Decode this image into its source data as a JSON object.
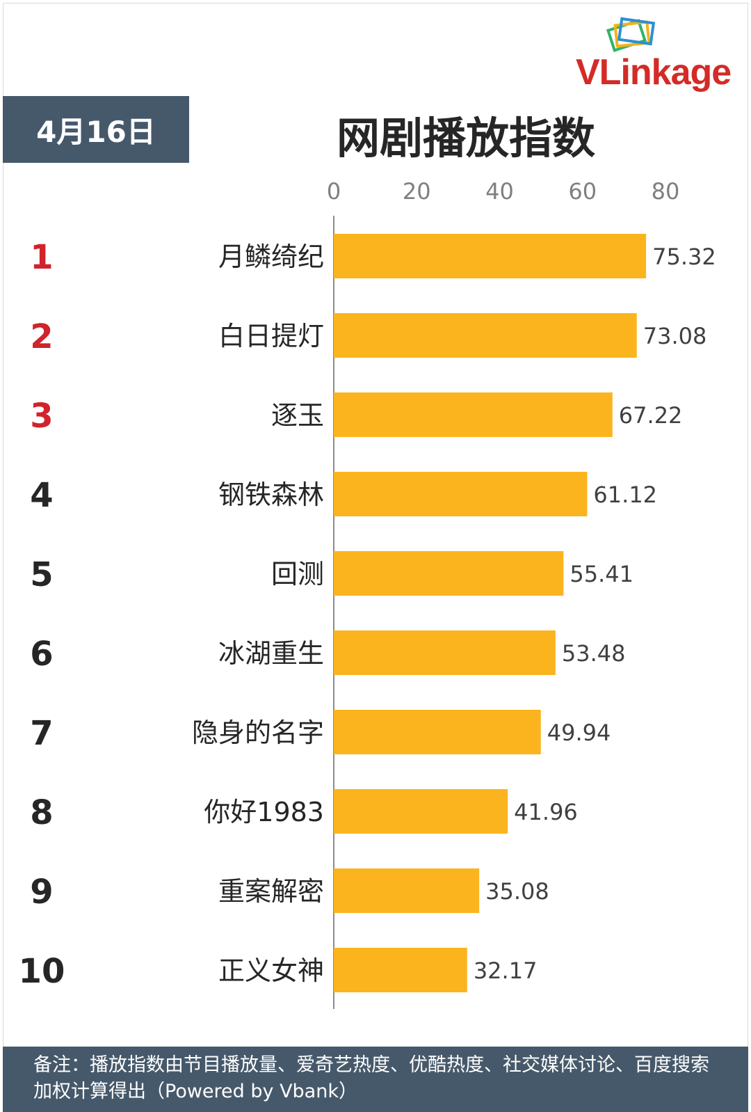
{
  "header": {
    "logo_text": "VLinkage",
    "date": "4月16日",
    "title": "网剧播放指数"
  },
  "chart_data": {
    "type": "bar",
    "orientation": "horizontal",
    "xlim": [
      0,
      80
    ],
    "ticks": [
      0,
      20,
      40,
      60,
      80
    ],
    "ranks": [
      "1",
      "2",
      "3",
      "4",
      "5",
      "6",
      "7",
      "8",
      "9",
      "10"
    ],
    "categories": [
      "月鳞绮纪",
      "白日提灯",
      "逐玉",
      "钢铁森林",
      "回测",
      "冰湖重生",
      "隐身的名字",
      "你好1983",
      "重案解密",
      "正义女神"
    ],
    "values": [
      75.32,
      73.08,
      67.22,
      61.12,
      55.41,
      53.48,
      49.94,
      41.96,
      35.08,
      32.17
    ],
    "value_labels": [
      "75.32",
      "73.08",
      "67.22",
      "61.12",
      "55.41",
      "53.48",
      "49.94",
      "41.96",
      "35.08",
      "32.17"
    ],
    "bar_color": "#fbb41e",
    "top_rank_color": "#d0232b",
    "rank_color": "#262626",
    "grid": false
  },
  "footer": {
    "note": "备注：播放指数由节目播放量、爱奇艺热度、优酷热度、社交媒体讨论、百度搜索加权计算得出（Powered by Vbank）"
  }
}
